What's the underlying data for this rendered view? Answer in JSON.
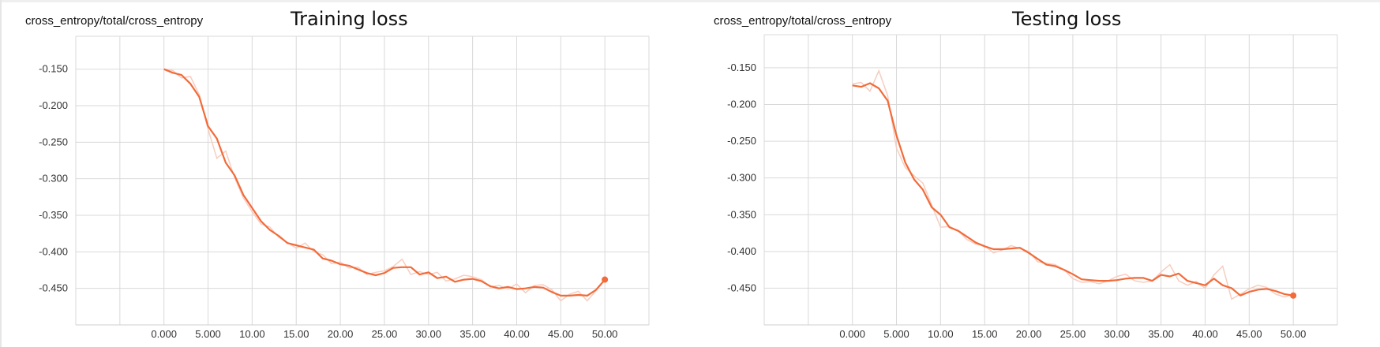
{
  "chart_data": [
    {
      "type": "line",
      "tag": "cross_entropy/total/cross_entropy",
      "title": "Training loss",
      "xlabel": "",
      "ylabel": "",
      "xlim": [
        -10,
        55
      ],
      "ylim": [
        -0.5,
        -0.105
      ],
      "x_ticks": [
        "0.000",
        "5.000",
        "10.00",
        "15.00",
        "20.00",
        "25.00",
        "30.00",
        "35.00",
        "40.00",
        "45.00",
        "50.00"
      ],
      "y_ticks": [
        "-0.150",
        "-0.200",
        "-0.250",
        "-0.300",
        "-0.350",
        "-0.400",
        "-0.450"
      ],
      "grid": true,
      "series": [
        {
          "role": "smoothed",
          "color": "#f26b3a",
          "x": [
            0,
            1,
            2,
            3,
            4,
            5,
            6,
            7,
            8,
            9,
            10,
            11,
            12,
            13,
            14,
            15,
            16,
            17,
            18,
            19,
            20,
            21,
            22,
            23,
            24,
            25,
            26,
            27,
            28,
            29,
            30,
            31,
            32,
            33,
            34,
            35,
            36,
            37,
            38,
            39,
            40,
            41,
            42,
            43,
            44,
            45,
            46,
            47,
            48,
            49,
            50
          ],
          "values": [
            -0.15,
            -0.155,
            -0.158,
            -0.17,
            -0.188,
            -0.228,
            -0.245,
            -0.278,
            -0.295,
            -0.322,
            -0.34,
            -0.358,
            -0.37,
            -0.378,
            -0.388,
            -0.391,
            -0.394,
            -0.397,
            -0.409,
            -0.412,
            -0.417,
            -0.419,
            -0.424,
            -0.429,
            -0.432,
            -0.429,
            -0.422,
            -0.421,
            -0.421,
            -0.431,
            -0.428,
            -0.436,
            -0.434,
            -0.441,
            -0.438,
            -0.437,
            -0.44,
            -0.447,
            -0.45,
            -0.448,
            -0.451,
            -0.45,
            -0.448,
            -0.449,
            -0.455,
            -0.46,
            -0.46,
            -0.459,
            -0.46,
            -0.452,
            -0.438
          ]
        },
        {
          "role": "raw",
          "color": "#f7cdbf",
          "x": [
            0,
            1,
            2,
            3,
            4,
            5,
            6,
            7,
            8,
            9,
            10,
            11,
            12,
            13,
            14,
            15,
            16,
            17,
            18,
            19,
            20,
            21,
            22,
            23,
            24,
            25,
            26,
            27,
            28,
            29,
            30,
            31,
            32,
            33,
            34,
            35,
            36,
            37,
            38,
            39,
            40,
            41,
            42,
            43,
            44,
            45,
            46,
            47,
            48,
            49,
            50
          ],
          "values": [
            -0.15,
            -0.152,
            -0.162,
            -0.16,
            -0.185,
            -0.232,
            -0.272,
            -0.262,
            -0.298,
            -0.326,
            -0.345,
            -0.362,
            -0.366,
            -0.38,
            -0.387,
            -0.395,
            -0.388,
            -0.4,
            -0.404,
            -0.416,
            -0.414,
            -0.422,
            -0.421,
            -0.431,
            -0.428,
            -0.426,
            -0.42,
            -0.41,
            -0.431,
            -0.427,
            -0.431,
            -0.428,
            -0.44,
            -0.437,
            -0.432,
            -0.434,
            -0.438,
            -0.448,
            -0.446,
            -0.451,
            -0.444,
            -0.456,
            -0.446,
            -0.445,
            -0.452,
            -0.467,
            -0.458,
            -0.454,
            -0.467,
            -0.453,
            -0.438
          ]
        }
      ]
    },
    {
      "type": "line",
      "tag": "cross_entropy/total/cross_entropy",
      "title": "Testing loss",
      "xlabel": "",
      "ylabel": "",
      "xlim": [
        -10,
        55
      ],
      "ylim": [
        -0.5,
        -0.105
      ],
      "x_ticks": [
        "0.000",
        "5.000",
        "10.00",
        "15.00",
        "20.00",
        "25.00",
        "30.00",
        "35.00",
        "40.00",
        "45.00",
        "50.00"
      ],
      "y_ticks": [
        "-0.150",
        "-0.200",
        "-0.250",
        "-0.300",
        "-0.350",
        "-0.400",
        "-0.450"
      ],
      "grid": true,
      "series": [
        {
          "role": "smoothed",
          "color": "#f26b3a",
          "x": [
            0,
            1,
            2,
            3,
            4,
            5,
            6,
            7,
            8,
            9,
            10,
            11,
            12,
            13,
            14,
            15,
            16,
            17,
            18,
            19,
            20,
            21,
            22,
            23,
            24,
            25,
            26,
            27,
            28,
            29,
            30,
            31,
            32,
            33,
            34,
            35,
            36,
            37,
            38,
            39,
            40,
            41,
            42,
            43,
            44,
            45,
            46,
            47,
            48,
            49,
            50
          ],
          "values": [
            -0.174,
            -0.176,
            -0.171,
            -0.178,
            -0.195,
            -0.242,
            -0.279,
            -0.302,
            -0.316,
            -0.34,
            -0.35,
            -0.367,
            -0.372,
            -0.38,
            -0.388,
            -0.393,
            -0.397,
            -0.397,
            -0.396,
            -0.395,
            -0.402,
            -0.41,
            -0.418,
            -0.42,
            -0.425,
            -0.431,
            -0.438,
            -0.439,
            -0.44,
            -0.44,
            -0.439,
            -0.437,
            -0.436,
            -0.436,
            -0.44,
            -0.432,
            -0.434,
            -0.43,
            -0.44,
            -0.443,
            -0.446,
            -0.437,
            -0.446,
            -0.45,
            -0.46,
            -0.455,
            -0.452,
            -0.451,
            -0.454,
            -0.458,
            -0.46
          ]
        },
        {
          "role": "raw",
          "color": "#f7cdbf",
          "x": [
            0,
            1,
            2,
            3,
            4,
            5,
            6,
            7,
            8,
            9,
            10,
            11,
            12,
            13,
            14,
            15,
            16,
            17,
            18,
            19,
            20,
            21,
            22,
            23,
            24,
            25,
            26,
            27,
            28,
            29,
            30,
            31,
            32,
            33,
            34,
            35,
            36,
            37,
            38,
            39,
            40,
            41,
            42,
            43,
            44,
            45,
            46,
            47,
            48,
            49,
            50
          ],
          "values": [
            -0.172,
            -0.17,
            -0.182,
            -0.154,
            -0.188,
            -0.259,
            -0.286,
            -0.297,
            -0.307,
            -0.337,
            -0.367,
            -0.366,
            -0.372,
            -0.384,
            -0.39,
            -0.392,
            -0.402,
            -0.398,
            -0.392,
            -0.396,
            -0.4,
            -0.414,
            -0.416,
            -0.418,
            -0.425,
            -0.437,
            -0.442,
            -0.441,
            -0.444,
            -0.44,
            -0.434,
            -0.431,
            -0.44,
            -0.442,
            -0.44,
            -0.428,
            -0.418,
            -0.44,
            -0.446,
            -0.441,
            -0.45,
            -0.432,
            -0.42,
            -0.465,
            -0.458,
            -0.451,
            -0.446,
            -0.449,
            -0.458,
            -0.462,
            -0.459
          ]
        }
      ]
    }
  ]
}
